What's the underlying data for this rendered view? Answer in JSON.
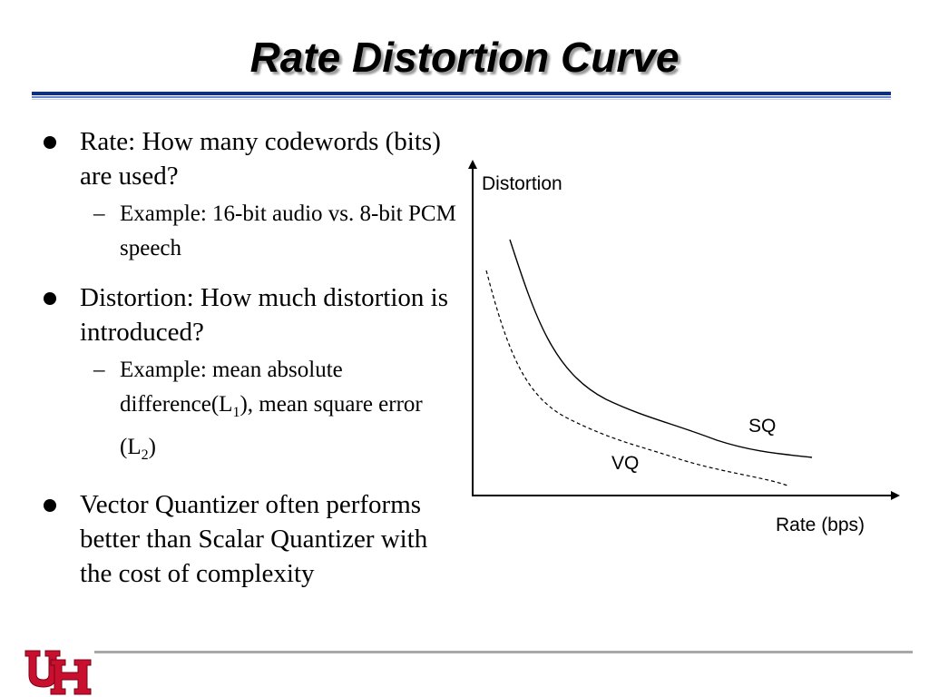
{
  "slide": {
    "title": "Rate Distortion Curve",
    "bullets": [
      {
        "text": "Rate: How many codewords (bits) are used?",
        "sub": "Example: 16-bit audio vs. 8-bit PCM speech"
      },
      {
        "text": "Distortion: How much distortion is introduced?",
        "sub_parts": {
          "a": "Example: mean absolute difference(L",
          "sub1": "1",
          "b": "), mean square error (L",
          "sub2": "2",
          "c": ")"
        }
      },
      {
        "text": "Vector Quantizer often performs better than Scalar Quantizer with the cost of complexity"
      }
    ]
  },
  "diagram": {
    "y_label": "Distortion",
    "x_label": "Rate (bps)",
    "curve_sq_label": "SQ",
    "curve_vq_label": "VQ"
  },
  "colors": {
    "title_rule_dark": "#0a2f8c",
    "title_rule_light": "#6c87c9",
    "logo_red": "#c8102e",
    "footer_line": "#a8a8a8"
  }
}
